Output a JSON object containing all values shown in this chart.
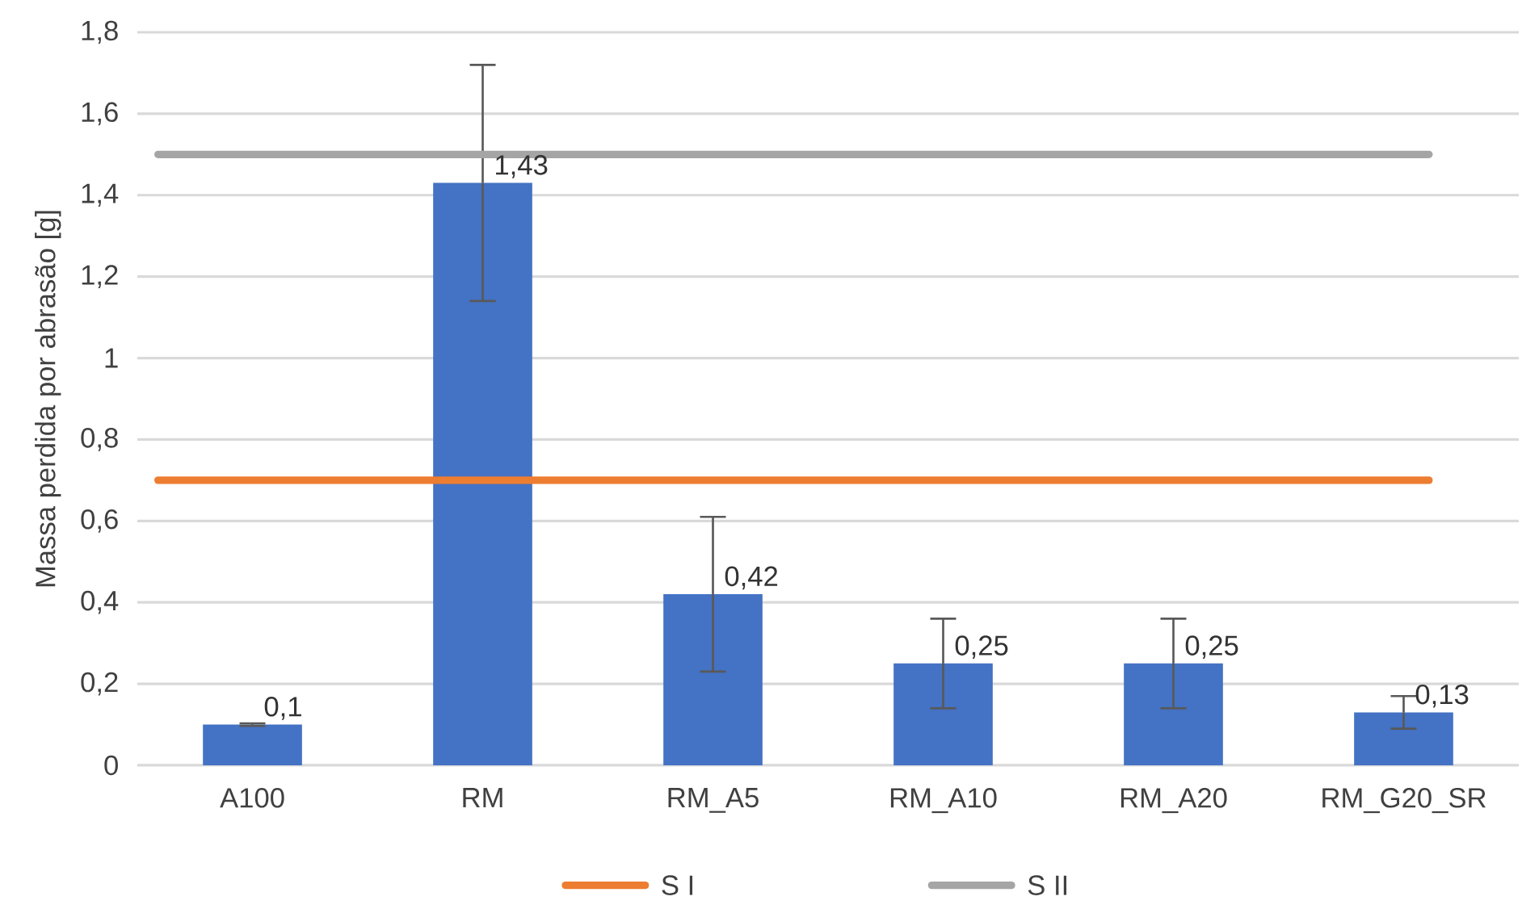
{
  "chart_data": {
    "type": "bar",
    "ylabel": "Massa perdida por abrasão [g]",
    "categories": [
      "A100",
      "RM",
      "RM_A5",
      "RM_A10",
      "RM_A20",
      "RM_G20_SR"
    ],
    "values": [
      0.1,
      1.43,
      0.42,
      0.25,
      0.25,
      0.13
    ],
    "errors": [
      0.003,
      0.29,
      0.19,
      0.11,
      0.11,
      0.04
    ],
    "value_labels": [
      "0,1",
      "1,43",
      "0,42",
      "0,25",
      "0,25",
      "0,13"
    ],
    "color": "#4472c4",
    "ylim": [
      0,
      1.8
    ],
    "yticks": [
      {
        "value": 0,
        "label": "0"
      },
      {
        "value": 0.2,
        "label": "0,2"
      },
      {
        "value": 0.4,
        "label": "0,4"
      },
      {
        "value": 0.6,
        "label": "0,6"
      },
      {
        "value": 0.8,
        "label": "0,8"
      },
      {
        "value": 1,
        "label": "1"
      },
      {
        "value": 1.2,
        "label": "1,2"
      },
      {
        "value": 1.4,
        "label": "1,4"
      },
      {
        "value": 1.6,
        "label": "1,6"
      },
      {
        "value": 1.8,
        "label": "1,8"
      }
    ],
    "ref_lines": [
      {
        "axis": "y",
        "value": 0.7,
        "label": "S I",
        "color": "#ed7d31"
      },
      {
        "axis": "y",
        "value": 1.5,
        "label": "S II",
        "color": "#a5a5a5"
      }
    ],
    "grid": "y",
    "legend": "bottom"
  }
}
